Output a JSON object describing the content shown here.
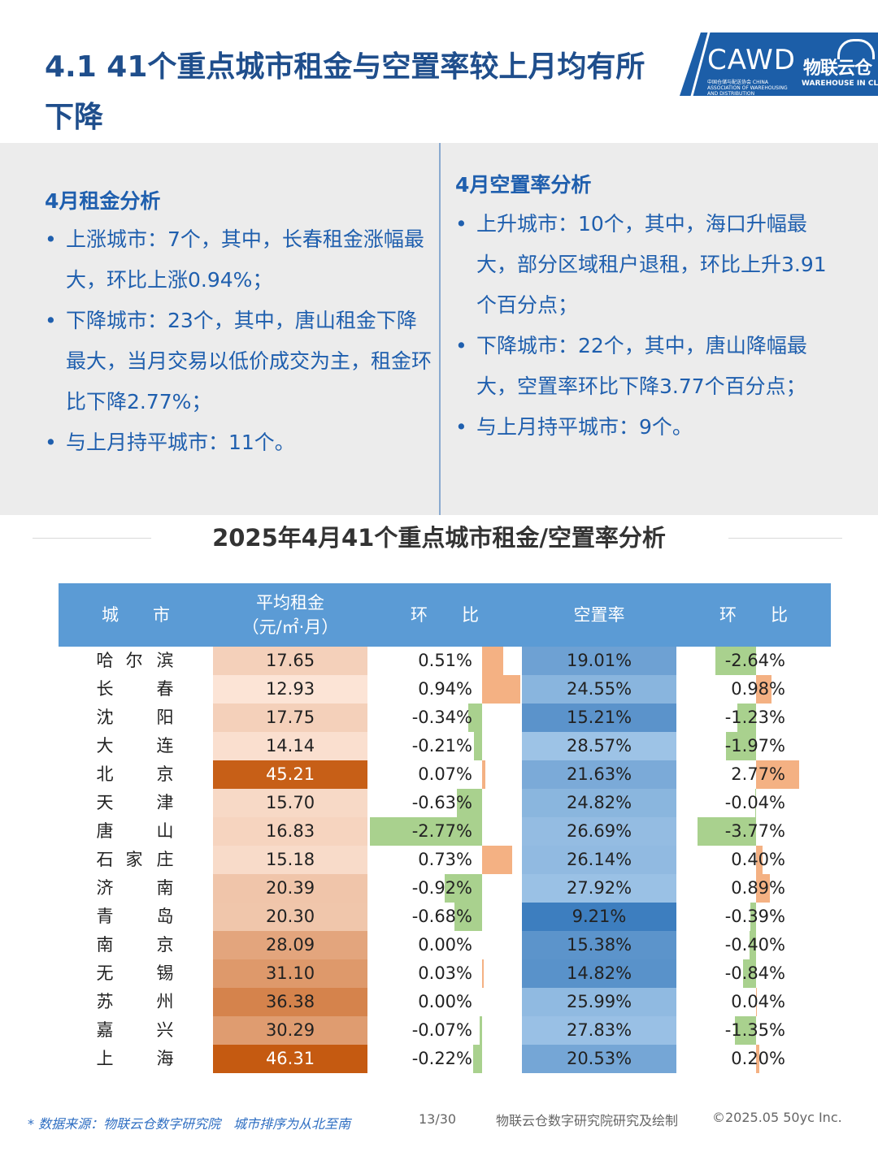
{
  "title": "4.1 41个重点城市租金与空置率较上月均有所下降",
  "logos": {
    "cawd_text": "CAWD",
    "cawd_subtitle": "中国仓储与配送协会 CHINA ASSOCIATION OF WAREHOUSING AND DISTRIBUTION",
    "wyc_cn": "物联云仓",
    "wyc_en": "WAREHOUSE IN CLOUD"
  },
  "rent_analysis": {
    "heading": "4月租金分析",
    "bullets": [
      "上涨城市：7个，其中，长春租金涨幅最大，环比上涨0.94%；",
      "下降城市：23个，其中，唐山租金下降最大，当月交易以低价成交为主，租金环比下降2.77%；",
      "与上月持平城市：11个。"
    ]
  },
  "vacancy_analysis": {
    "heading": "4月空置率分析",
    "bullets": [
      "上升城市：10个，其中，海口升幅最大，部分区域租户退租，环比上升3.91个百分点；",
      "下降城市：22个，其中，唐山降幅最大，空置率环比下降3.77个百分点；",
      "与上月持平城市：9个。"
    ]
  },
  "table": {
    "title": "2025年4月41个重点城市租金/空置率分析",
    "headers": {
      "city": "城　　市",
      "rent_line1": "平均租金",
      "rent_line2": "（元/㎡·月）",
      "change1": "环　　比",
      "vacancy": "空置率",
      "change2": "环　　比"
    },
    "colors": {
      "header_bg": "#5b9bd5",
      "positive_bar": "#f4b183",
      "negative_bar": "#a9d18e",
      "rent_low": "#fce4d6",
      "rent_high": "#c55a11",
      "vacancy_low": "#9dc3e6",
      "vacancy_high": "#3d7ebf"
    },
    "rows": [
      {
        "city": [
          "哈",
          "尔",
          "滨"
        ],
        "rent": "17.65",
        "rent_change": "0.51%",
        "vacancy": "19.01%",
        "vacancy_change": "-2.64%"
      },
      {
        "city": [
          "长",
          "",
          "春"
        ],
        "rent": "12.93",
        "rent_change": "0.94%",
        "vacancy": "24.55%",
        "vacancy_change": "0.98%"
      },
      {
        "city": [
          "沈",
          "",
          "阳"
        ],
        "rent": "17.75",
        "rent_change": "-0.34%",
        "vacancy": "15.21%",
        "vacancy_change": "-1.23%"
      },
      {
        "city": [
          "大",
          "",
          "连"
        ],
        "rent": "14.14",
        "rent_change": "-0.21%",
        "vacancy": "28.57%",
        "vacancy_change": "-1.97%"
      },
      {
        "city": [
          "北",
          "",
          "京"
        ],
        "rent": "45.21",
        "rent_change": "0.07%",
        "vacancy": "21.63%",
        "vacancy_change": "2.77%"
      },
      {
        "city": [
          "天",
          "",
          "津"
        ],
        "rent": "15.70",
        "rent_change": "-0.63%",
        "vacancy": "24.82%",
        "vacancy_change": "-0.04%"
      },
      {
        "city": [
          "唐",
          "",
          "山"
        ],
        "rent": "16.83",
        "rent_change": "-2.77%",
        "vacancy": "26.69%",
        "vacancy_change": "-3.77%"
      },
      {
        "city": [
          "石",
          "家",
          "庄"
        ],
        "rent": "15.18",
        "rent_change": "0.73%",
        "vacancy": "26.14%",
        "vacancy_change": "0.40%"
      },
      {
        "city": [
          "济",
          "",
          "南"
        ],
        "rent": "20.39",
        "rent_change": "-0.92%",
        "vacancy": "27.92%",
        "vacancy_change": "0.89%"
      },
      {
        "city": [
          "青",
          "",
          "岛"
        ],
        "rent": "20.30",
        "rent_change": "-0.68%",
        "vacancy": "9.21%",
        "vacancy_change": "-0.39%"
      },
      {
        "city": [
          "南",
          "",
          "京"
        ],
        "rent": "28.09",
        "rent_change": "0.00%",
        "vacancy": "15.38%",
        "vacancy_change": "-0.40%"
      },
      {
        "city": [
          "无",
          "",
          "锡"
        ],
        "rent": "31.10",
        "rent_change": "0.03%",
        "vacancy": "14.82%",
        "vacancy_change": "-0.84%"
      },
      {
        "city": [
          "苏",
          "",
          "州"
        ],
        "rent": "36.38",
        "rent_change": "0.00%",
        "vacancy": "25.99%",
        "vacancy_change": "0.04%"
      },
      {
        "city": [
          "嘉",
          "",
          "兴"
        ],
        "rent": "30.29",
        "rent_change": "-0.07%",
        "vacancy": "27.83%",
        "vacancy_change": "-1.35%"
      },
      {
        "city": [
          "上",
          "",
          "海"
        ],
        "rent": "46.31",
        "rent_change": "-0.22%",
        "vacancy": "20.53%",
        "vacancy_change": "0.20%"
      }
    ]
  },
  "footer": {
    "source": "* 数据来源：物联云仓数字研究院　城市排序为从北至南",
    "page": "13/30",
    "credit": "物联云仓数字研究院研究及绘制",
    "copyright": "©2025.05 50yc Inc."
  }
}
